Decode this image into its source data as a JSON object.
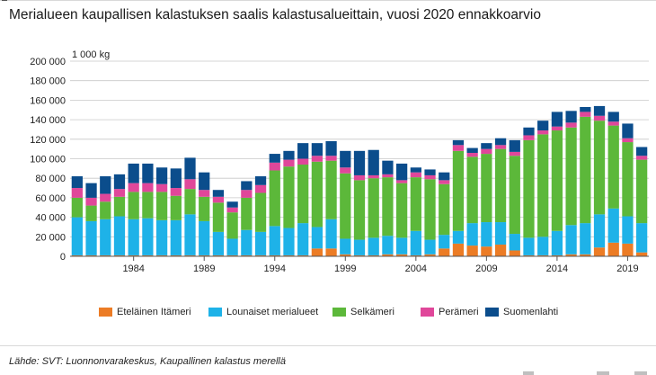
{
  "title": "Merialueen kaupallisen kalastuksen saalis kalastusalueittain, vuosi 2020 ennakkoarvio",
  "source": "Lähde: SVT: Luonnonvarakeskus, Kaupallinen kalastus merellä",
  "chart_data": {
    "type": "bar",
    "stacked": true,
    "unit_label": "1 000 kg",
    "ylim": [
      0,
      200000
    ],
    "yticks": [
      0,
      20000,
      40000,
      60000,
      80000,
      100000,
      120000,
      140000,
      160000,
      180000,
      200000
    ],
    "ytick_labels": [
      "0",
      "20 000",
      "40 000",
      "60 000",
      "80 000",
      "100 000",
      "120 000",
      "140 000",
      "160 000",
      "180 000",
      "200 000"
    ],
    "categories": [
      "1980",
      "1981",
      "1982",
      "1983",
      "1984",
      "1985",
      "1986",
      "1987",
      "1988",
      "1989",
      "1990",
      "1991",
      "1992",
      "1993",
      "1994",
      "1995",
      "1996",
      "1997",
      "1998",
      "1999",
      "2000",
      "2001",
      "2002",
      "2003",
      "2004",
      "2005",
      "2006",
      "2007",
      "2008",
      "2009",
      "2010",
      "2011",
      "2012",
      "2013",
      "2014",
      "2015",
      "2016",
      "2017",
      "2018",
      "2019",
      "2020"
    ],
    "xtick_labels": [
      "1984",
      "1989",
      "1994",
      "1999",
      "2004",
      "2009",
      "2014",
      "2019"
    ],
    "grid": true,
    "legend_position": "bottom",
    "series": [
      {
        "name": "Eteläinen Itämeri",
        "color": "#ec7c25",
        "values": [
          1000,
          1000,
          1000,
          1000,
          1000,
          1000,
          1000,
          1000,
          1000,
          1000,
          1000,
          1000,
          1000,
          1000,
          1000,
          1000,
          1000,
          8000,
          8000,
          2000,
          1000,
          1000,
          2000,
          2000,
          1000,
          2000,
          8000,
          13000,
          11000,
          10000,
          12000,
          6000,
          1000,
          1000,
          1000,
          2000,
          2000,
          9000,
          14000,
          13000,
          4000
        ]
      },
      {
        "name": "Lounaiset merialueet",
        "color": "#1eb2e8",
        "values": [
          39000,
          35000,
          37000,
          40000,
          37000,
          38000,
          36000,
          36000,
          42000,
          35000,
          24000,
          17000,
          26000,
          24000,
          30000,
          28000,
          33000,
          22000,
          30000,
          16000,
          16000,
          18000,
          19000,
          17000,
          25000,
          15000,
          14000,
          13000,
          23000,
          25000,
          23000,
          17000,
          18000,
          19000,
          25000,
          30000,
          32000,
          34000,
          35000,
          28000,
          30000
        ]
      },
      {
        "name": "Selkämeri",
        "color": "#5cb83a",
        "values": [
          20000,
          16000,
          18000,
          20000,
          28000,
          27000,
          29000,
          25000,
          26000,
          25000,
          30000,
          27000,
          33000,
          40000,
          57000,
          63000,
          60000,
          67000,
          60000,
          67000,
          61000,
          61000,
          60000,
          56000,
          55000,
          62000,
          52000,
          82000,
          68000,
          70000,
          75000,
          80000,
          100000,
          105000,
          103000,
          100000,
          109000,
          96000,
          85000,
          76000,
          65000
        ]
      },
      {
        "name": "Perämeri",
        "color": "#e0479a",
        "values": [
          10000,
          8000,
          8000,
          8000,
          9000,
          9000,
          8000,
          8000,
          10000,
          7000,
          6000,
          5000,
          8000,
          8000,
          8000,
          7000,
          6000,
          6000,
          5000,
          6000,
          5000,
          3000,
          3000,
          3000,
          5000,
          4000,
          4000,
          6000,
          4000,
          5000,
          4000,
          4000,
          5000,
          4000,
          4000,
          5000,
          5000,
          5000,
          4000,
          4000,
          4000
        ]
      },
      {
        "name": "Suomenlahti",
        "color": "#0b4d8c",
        "values": [
          12000,
          15000,
          18000,
          15000,
          20000,
          20000,
          17000,
          20000,
          22000,
          18000,
          7000,
          6000,
          9000,
          9000,
          9000,
          9000,
          16000,
          13000,
          15000,
          17000,
          25000,
          26000,
          14000,
          17000,
          5000,
          6000,
          8000,
          5000,
          5000,
          6000,
          7000,
          12000,
          8000,
          10000,
          15000,
          12000,
          5000,
          10000,
          10000,
          15000,
          9000
        ]
      }
    ]
  }
}
